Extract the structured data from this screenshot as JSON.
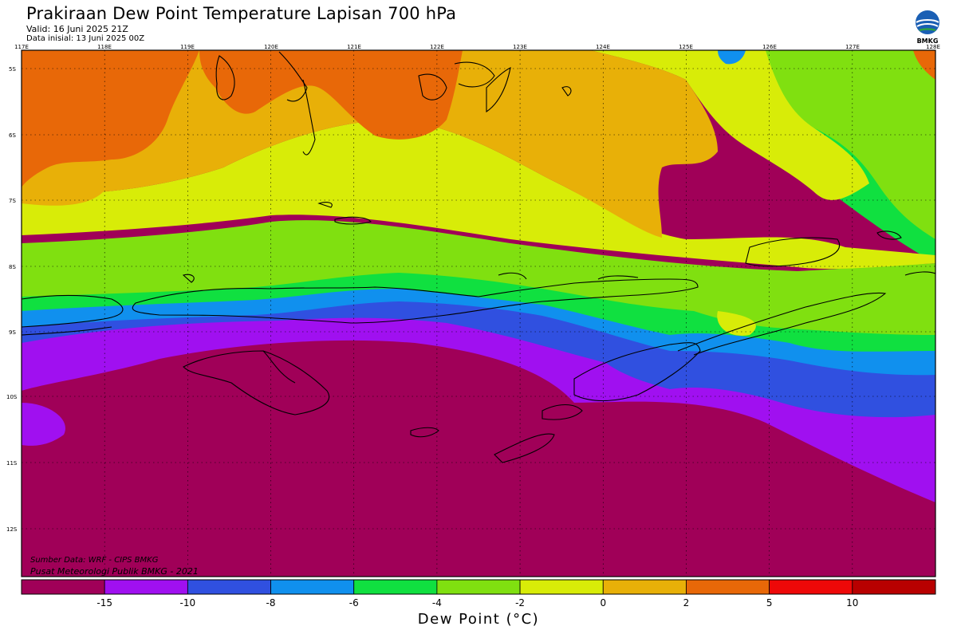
{
  "header": {
    "title": "Prakiraan Dew Point Temperature Lapisan 700 hPa",
    "valid": "Valid: 16 Juni 2025 21Z",
    "init": "Data inisial: 13 Juni 2025 00Z"
  },
  "logo": {
    "text": "BMKG",
    "icon": "bmkg-logo"
  },
  "axes": {
    "lon_labels": [
      "117E",
      "118E",
      "119E",
      "120E",
      "121E",
      "122E",
      "123E",
      "124E",
      "125E",
      "126E",
      "127E",
      "128E"
    ],
    "lat_labels": [
      "5S",
      "6S",
      "7S",
      "8S",
      "9S",
      "10S",
      "11S",
      "12S"
    ]
  },
  "source": {
    "line1": "Sumber Data: WRF - CIPS BMKG",
    "line2": "Pusat Meteorologi Publik BMKG - 2021"
  },
  "colorbar": {
    "title": "Dew Point (°C)",
    "labels": [
      "-15",
      "-10",
      "-8",
      "-6",
      "-4",
      "-2",
      "0",
      "2",
      "5",
      "10"
    ],
    "colors": [
      "#a00058",
      "#a010f0",
      "#3050e0",
      "#1090ee",
      "#10e040",
      "#80e010",
      "#d8ec08",
      "#e8b008",
      "#e86808",
      "#ee0808",
      "#b80000"
    ]
  }
}
